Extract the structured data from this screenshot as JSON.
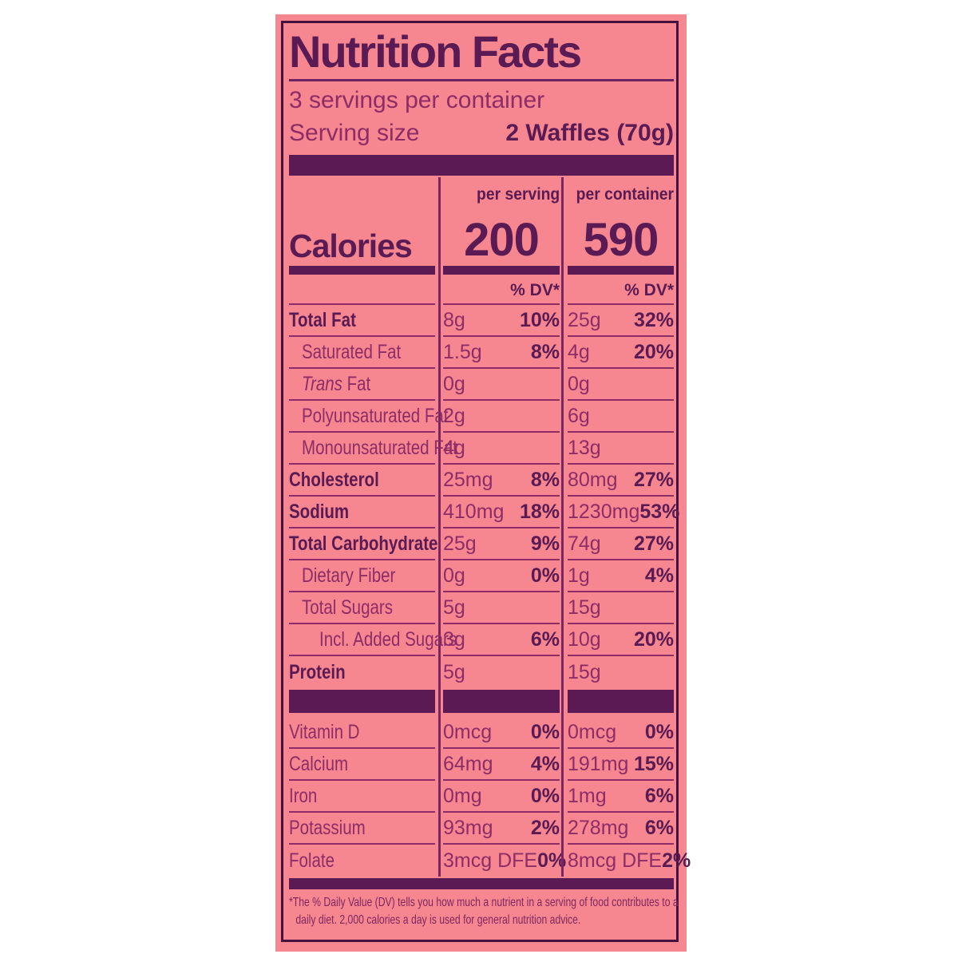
{
  "label": {
    "title": "Nutrition Facts",
    "servings_per_container": "3 servings per container",
    "serving_size_label": "Serving size",
    "serving_size_value": "2 Waffles (70g)",
    "per_serving_header": "per serving",
    "per_container_header": "per container",
    "calories_label": "Calories",
    "calories_per_serving": "200",
    "calories_per_container": "590",
    "dv_header": "% DV*",
    "footnote": "*The % Daily Value (DV) tells you how much a nutrient in a serving of food contributes to a daily diet. 2,000 calories a day is used for general nutrition advice."
  },
  "colors": {
    "panel_pink": "#f6868f",
    "dark_purple": "#5a1a53",
    "regular_text_purple": "#8d2c67",
    "bar_purple": "#5c1a54",
    "border_dark": "#44123c"
  },
  "rows_main": [
    {
      "name": "Total Fat",
      "bold": true,
      "indent": 0,
      "ps_amount": "8g",
      "ps_dv": "10%",
      "pc_amount": "25g",
      "pc_dv": "32%"
    },
    {
      "name": "Saturated Fat",
      "bold": false,
      "indent": 1,
      "ps_amount": "1.5g",
      "ps_dv": "8%",
      "pc_amount": "4g",
      "pc_dv": "20%"
    },
    {
      "italic": "Trans",
      "name": " Fat",
      "bold": false,
      "indent": 1,
      "ps_amount": "0g",
      "ps_dv": "",
      "pc_amount": "0g",
      "pc_dv": ""
    },
    {
      "name": "Polyunsaturated Fat",
      "bold": false,
      "indent": 1,
      "ps_amount": "2g",
      "ps_dv": "",
      "pc_amount": "6g",
      "pc_dv": ""
    },
    {
      "name": "Monounsaturated Fat",
      "bold": false,
      "indent": 1,
      "ps_amount": "4g",
      "ps_dv": "",
      "pc_amount": "13g",
      "pc_dv": ""
    },
    {
      "name": "Cholesterol",
      "bold": true,
      "indent": 0,
      "ps_amount": "25mg",
      "ps_dv": "8%",
      "pc_amount": "80mg",
      "pc_dv": "27%"
    },
    {
      "name": "Sodium",
      "bold": true,
      "indent": 0,
      "ps_amount": "410mg",
      "ps_dv": "18%",
      "pc_amount": "1230mg",
      "pc_dv": "53%"
    },
    {
      "name": "Total Carbohydrate",
      "bold": true,
      "indent": 0,
      "ps_amount": "25g",
      "ps_dv": "9%",
      "pc_amount": "74g",
      "pc_dv": "27%"
    },
    {
      "name": "Dietary Fiber",
      "bold": false,
      "indent": 1,
      "ps_amount": "0g",
      "ps_dv": "0%",
      "pc_amount": "1g",
      "pc_dv": "4%"
    },
    {
      "name": "Total Sugars",
      "bold": false,
      "indent": 1,
      "ps_amount": "5g",
      "ps_dv": "",
      "pc_amount": "15g",
      "pc_dv": ""
    },
    {
      "name": "Incl. Added Sugars",
      "bold": false,
      "indent": 2,
      "ps_amount": "3g",
      "ps_dv": "6%",
      "pc_amount": "10g",
      "pc_dv": "20%"
    },
    {
      "name": "Protein",
      "bold": true,
      "indent": 0,
      "rule": false,
      "ps_amount": "5g",
      "ps_dv": "",
      "pc_amount": "15g",
      "pc_dv": ""
    }
  ],
  "rows_micro": [
    {
      "name": "Vitamin D",
      "bold": false,
      "indent": 0,
      "ps_amount": "0mcg",
      "ps_dv": "0%",
      "pc_amount": "0mcg",
      "pc_dv": "0%"
    },
    {
      "name": "Calcium",
      "bold": false,
      "indent": 0,
      "ps_amount": "64mg",
      "ps_dv": "4%",
      "pc_amount": "191mg",
      "pc_dv": "15%"
    },
    {
      "name": "Iron",
      "bold": false,
      "indent": 0,
      "ps_amount": "0mg",
      "ps_dv": "0%",
      "pc_amount": "1mg",
      "pc_dv": "6%"
    },
    {
      "name": "Potassium",
      "bold": false,
      "indent": 0,
      "ps_amount": "93mg",
      "ps_dv": "2%",
      "pc_amount": "278mg",
      "pc_dv": "6%"
    },
    {
      "name": "Folate",
      "bold": false,
      "indent": 0,
      "rule": false,
      "ps_amount": "3mcg DFE",
      "ps_dv": "0%",
      "pc_amount": "8mcg DFE",
      "pc_dv": "2%"
    }
  ]
}
